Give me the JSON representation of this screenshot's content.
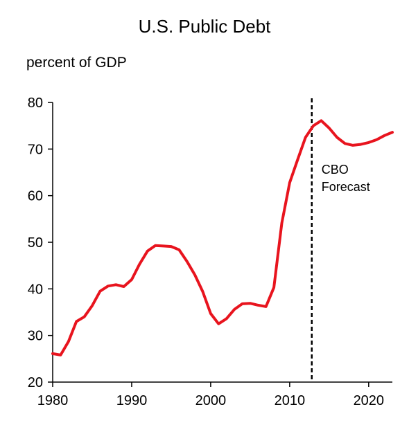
{
  "chart_data": {
    "type": "line",
    "title": "U.S. Public Debt",
    "ylabel": "percent of GDP",
    "xlabel": "",
    "xlim": [
      1980,
      2023
    ],
    "ylim": [
      20,
      80
    ],
    "xticks": [
      1980,
      1990,
      2000,
      2010,
      2020
    ],
    "yticks": [
      20,
      30,
      40,
      50,
      60,
      70,
      80
    ],
    "grid": false,
    "legend": "none",
    "series": [
      {
        "color": "#e8141e",
        "x": [
          1980,
          1981,
          1982,
          1983,
          1984,
          1985,
          1986,
          1987,
          1988,
          1989,
          1990,
          1991,
          1992,
          1993,
          1994,
          1995,
          1996,
          1997,
          1998,
          1999,
          2000,
          2001,
          2002,
          2003,
          2004,
          2005,
          2006,
          2007,
          2008,
          2009,
          2010,
          2011,
          2012,
          2013,
          2014,
          2015,
          2016,
          2017,
          2018,
          2019,
          2020,
          2021,
          2022,
          2023
        ],
        "y": [
          26.1,
          25.8,
          28.7,
          33.0,
          34.0,
          36.4,
          39.5,
          40.6,
          40.9,
          40.5,
          42.0,
          45.3,
          48.1,
          49.3,
          49.2,
          49.1,
          48.4,
          45.9,
          43.0,
          39.4,
          34.7,
          32.5,
          33.6,
          35.6,
          36.8,
          36.9,
          36.5,
          36.2,
          40.3,
          54.1,
          62.8,
          67.7,
          72.5,
          75.0,
          76.1,
          74.5,
          72.5,
          71.2,
          70.8,
          71.0,
          71.4,
          72.0,
          72.9,
          73.6
        ]
      }
    ],
    "annotations": [
      {
        "type": "vline",
        "x": 2012.8,
        "style": "dashed",
        "label_lines": [
          "CBO",
          "Forecast"
        ]
      }
    ]
  }
}
